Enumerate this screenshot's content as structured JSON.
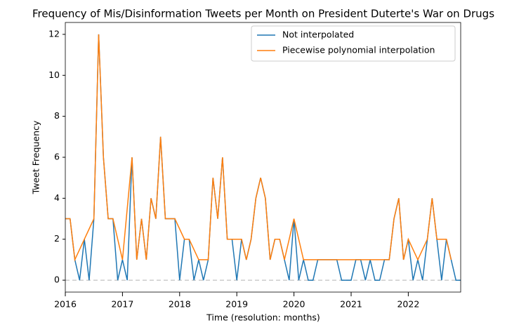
{
  "chart_data": {
    "type": "line",
    "title": "Frequency of Mis/Disinformation Tweets per Month on President Duterte's War on Drugs",
    "xlabel": "Time (resolution: months)",
    "ylabel": "Tweet Frequency",
    "x": [
      0,
      1,
      2,
      3,
      4,
      5,
      6,
      7,
      8,
      9,
      10,
      11,
      12,
      13,
      14,
      15,
      16,
      17,
      18,
      19,
      20,
      21,
      22,
      23,
      24,
      25,
      26,
      27,
      28,
      29,
      30,
      31,
      32,
      33,
      34,
      35,
      36,
      37,
      38,
      39,
      40,
      41,
      42,
      43,
      44,
      45,
      46,
      47,
      48,
      49,
      50,
      51,
      52,
      53,
      54,
      55,
      56,
      57,
      58,
      59,
      60,
      61,
      62,
      63,
      64,
      65,
      66,
      67,
      68,
      69,
      70,
      71,
      72,
      73,
      74,
      75,
      76,
      77,
      78,
      79,
      80,
      81,
      82,
      83
    ],
    "series": [
      {
        "name": "Not interpolated",
        "color": "#1f77b4",
        "values": [
          3,
          3,
          1,
          0,
          2,
          0,
          3,
          12,
          6,
          3,
          3,
          0,
          1,
          0,
          6,
          1,
          3,
          1,
          4,
          3,
          7,
          3,
          3,
          3,
          0,
          2,
          2,
          0,
          1,
          0,
          1,
          5,
          3,
          6,
          2,
          2,
          0,
          2,
          1,
          2,
          4,
          5,
          4,
          1,
          2,
          2,
          1,
          0,
          3,
          0,
          1,
          0,
          0,
          1,
          1,
          1,
          1,
          1,
          0,
          0,
          0,
          1,
          1,
          0,
          1,
          0,
          0,
          1,
          1,
          3,
          4,
          1,
          2,
          0,
          1,
          0,
          2,
          4,
          2,
          0,
          2,
          1,
          0,
          0
        ]
      },
      {
        "name": "Piecewise polynomial interpolation",
        "color": "#ff7f0e",
        "values": [
          3,
          3,
          1,
          1.5,
          2,
          2.5,
          3,
          12,
          6,
          3,
          3,
          2,
          1,
          3.5,
          6,
          1,
          3,
          1,
          4,
          3,
          7,
          3,
          3,
          3,
          2.5,
          2,
          2,
          1.5,
          1,
          1,
          1,
          5,
          3,
          6,
          2,
          2,
          2,
          2,
          1,
          2,
          4,
          5,
          4,
          1,
          2,
          2,
          1,
          2,
          3,
          2,
          1,
          1,
          1,
          1,
          1,
          1,
          1,
          1,
          1,
          1,
          1,
          1,
          1,
          1,
          1,
          1,
          1,
          1,
          1,
          3,
          4,
          1,
          2,
          1.5,
          1,
          1.5,
          2,
          4,
          2,
          2,
          2,
          1,
          null,
          null
        ]
      }
    ],
    "xlim": [
      0,
      83
    ],
    "xticks": [
      {
        "value": 0,
        "label": "2016"
      },
      {
        "value": 12,
        "label": "2017"
      },
      {
        "value": 24,
        "label": "2018"
      },
      {
        "value": 36,
        "label": "2019"
      },
      {
        "value": 48,
        "label": "2020"
      },
      {
        "value": 60,
        "label": "2021"
      },
      {
        "value": 72,
        "label": "2022"
      }
    ],
    "ylim": [
      -0.58,
      12.58
    ],
    "yticks": [
      0,
      2,
      4,
      6,
      8,
      10,
      12
    ],
    "hline": 0,
    "legend": "upper right"
  }
}
